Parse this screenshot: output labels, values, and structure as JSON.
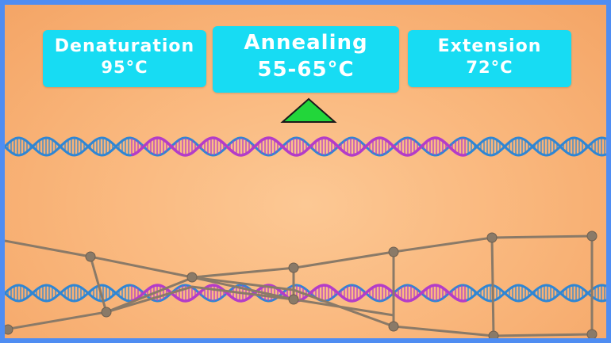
{
  "stages": {
    "denaturation": {
      "name": "Denaturation",
      "temp": "95°C"
    },
    "annealing": {
      "name": "Annealing",
      "temp": "55-65°C"
    },
    "extension": {
      "name": "Extension",
      "temp": "72°C"
    }
  },
  "colors": {
    "frame": "#4f8df2",
    "card": "#17dcf3",
    "pointer": "#22d63a",
    "dna_template": "#2f86d4",
    "dna_primer": "#b43cc8",
    "polymerase_frame": "#8a7a68"
  },
  "icons": {
    "pointer": "triangle-pointer-icon",
    "dna": "dna-helix-icon",
    "polymerase": "polymerase-structure-icon"
  }
}
